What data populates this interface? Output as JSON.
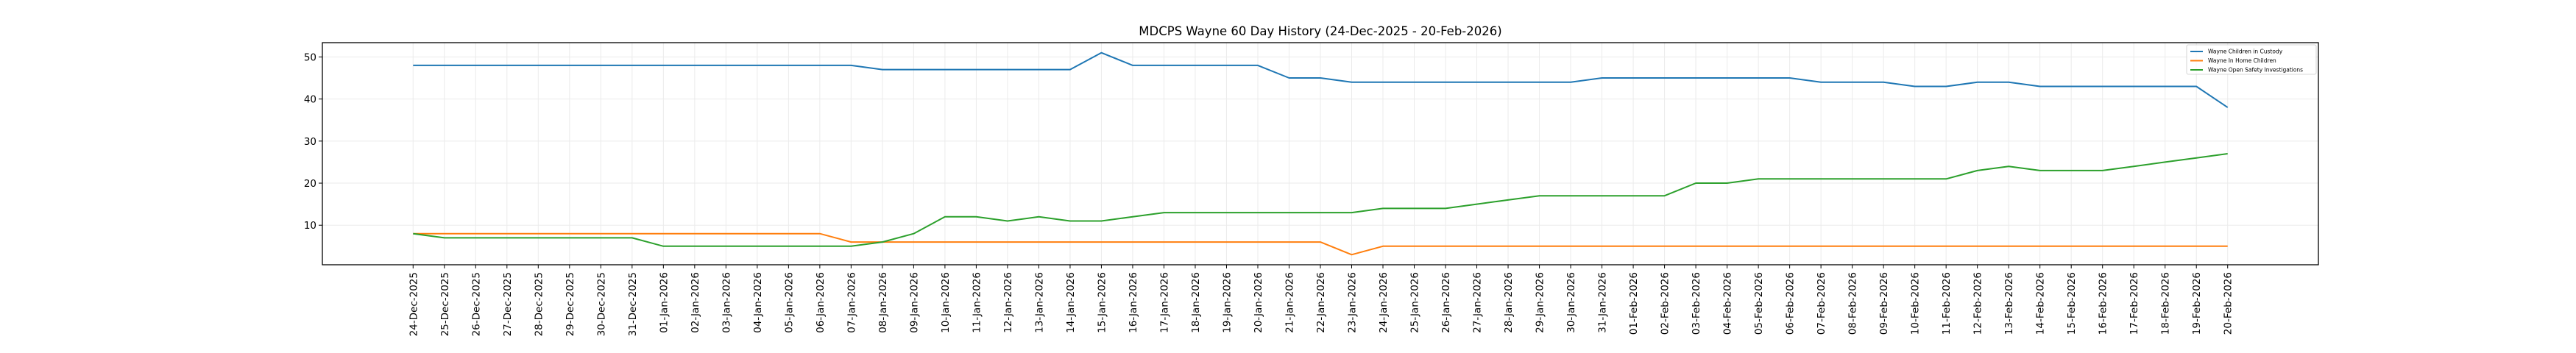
{
  "chart_data": {
    "type": "line",
    "title": "MDCPS Wayne 60 Day History (24-Dec-2025 - 20-Feb-2026)",
    "xlabel": "",
    "ylabel": "",
    "ylim": [
      0.6,
      53.4
    ],
    "y_ticks": [
      10,
      20,
      30,
      40,
      50
    ],
    "grid": true,
    "legend_position": "top-right",
    "x": [
      "24-Dec-2025",
      "25-Dec-2025",
      "26-Dec-2025",
      "27-Dec-2025",
      "28-Dec-2025",
      "29-Dec-2025",
      "30-Dec-2025",
      "31-Dec-2025",
      "01-Jan-2026",
      "02-Jan-2026",
      "03-Jan-2026",
      "04-Jan-2026",
      "05-Jan-2026",
      "06-Jan-2026",
      "07-Jan-2026",
      "08-Jan-2026",
      "09-Jan-2026",
      "10-Jan-2026",
      "11-Jan-2026",
      "12-Jan-2026",
      "13-Jan-2026",
      "14-Jan-2026",
      "15-Jan-2026",
      "16-Jan-2026",
      "17-Jan-2026",
      "18-Jan-2026",
      "19-Jan-2026",
      "20-Jan-2026",
      "21-Jan-2026",
      "22-Jan-2026",
      "23-Jan-2026",
      "24-Jan-2026",
      "25-Jan-2026",
      "26-Jan-2026",
      "27-Jan-2026",
      "28-Jan-2026",
      "29-Jan-2026",
      "30-Jan-2026",
      "31-Jan-2026",
      "01-Feb-2026",
      "02-Feb-2026",
      "03-Feb-2026",
      "04-Feb-2026",
      "05-Feb-2026",
      "06-Feb-2026",
      "07-Feb-2026",
      "08-Feb-2026",
      "09-Feb-2026",
      "10-Feb-2026",
      "11-Feb-2026",
      "12-Feb-2026",
      "13-Feb-2026",
      "14-Feb-2026",
      "15-Feb-2026",
      "16-Feb-2026",
      "17-Feb-2026",
      "18-Feb-2026",
      "19-Feb-2026",
      "20-Feb-2026"
    ],
    "series": [
      {
        "name": "Wayne Children in Custody",
        "color": "#1f77b4",
        "values": [
          48,
          48,
          48,
          48,
          48,
          48,
          48,
          48,
          48,
          48,
          48,
          48,
          48,
          48,
          48,
          47,
          47,
          47,
          47,
          47,
          47,
          47,
          51,
          48,
          48,
          48,
          48,
          48,
          45,
          45,
          44,
          44,
          44,
          44,
          44,
          44,
          44,
          44,
          45,
          45,
          45,
          45,
          45,
          45,
          45,
          44,
          44,
          44,
          43,
          43,
          44,
          44,
          43,
          43,
          43,
          43,
          43,
          43,
          38
        ]
      },
      {
        "name": "Wayne In Home Children",
        "color": "#ff7f0e",
        "values": [
          8,
          8,
          8,
          8,
          8,
          8,
          8,
          8,
          8,
          8,
          8,
          8,
          8,
          8,
          6,
          6,
          6,
          6,
          6,
          6,
          6,
          6,
          6,
          6,
          6,
          6,
          6,
          6,
          6,
          6,
          3,
          5,
          5,
          5,
          5,
          5,
          5,
          5,
          5,
          5,
          5,
          5,
          5,
          5,
          5,
          5,
          5,
          5,
          5,
          5,
          5,
          5,
          5,
          5,
          5,
          5,
          5,
          5,
          5
        ]
      },
      {
        "name": "Wayne Open Safety Investigations",
        "color": "#2ca02c",
        "values": [
          8,
          7,
          7,
          7,
          7,
          7,
          7,
          7,
          5,
          5,
          5,
          5,
          5,
          5,
          5,
          6,
          8,
          12,
          12,
          11,
          12,
          11,
          11,
          12,
          13,
          13,
          13,
          13,
          13,
          13,
          13,
          14,
          14,
          14,
          15,
          16,
          17,
          17,
          17,
          17,
          17,
          20,
          20,
          21,
          21,
          21,
          21,
          21,
          21,
          21,
          23,
          24,
          23,
          23,
          23,
          24,
          25,
          26,
          27
        ]
      }
    ]
  }
}
